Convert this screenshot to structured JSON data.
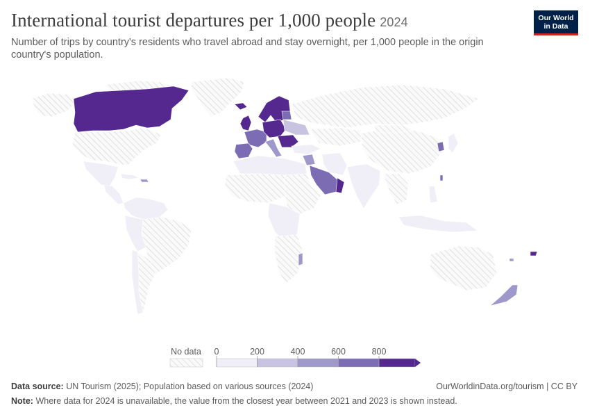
{
  "title": "International tourist departures per 1,000 people",
  "year": "2024",
  "subtitle": "Number of trips by country's residents who travel abroad and stay overnight, per 1,000 people in the origin country's population.",
  "logo": {
    "line1": "Our World",
    "line2": "in Data"
  },
  "legend": {
    "no_data_label": "No data",
    "ticks": [
      "0",
      "200",
      "400",
      "600",
      "800"
    ],
    "colors": [
      "#f0eff7",
      "#c7c3e0",
      "#9f98cb",
      "#7b6cb4",
      "#54288f"
    ],
    "no_data_color": "#e8e8e8"
  },
  "footer": {
    "source_label": "Data source:",
    "source_text": "UN Tourism (2025); Population based on various sources (2024)",
    "link_text": "OurWorldinData.org/tourism | CC BY",
    "note_label": "Note:",
    "note_text": "Where data for 2024 is unavailable, the value from the closest year between 2021 and 2023 is shown instead."
  }
}
